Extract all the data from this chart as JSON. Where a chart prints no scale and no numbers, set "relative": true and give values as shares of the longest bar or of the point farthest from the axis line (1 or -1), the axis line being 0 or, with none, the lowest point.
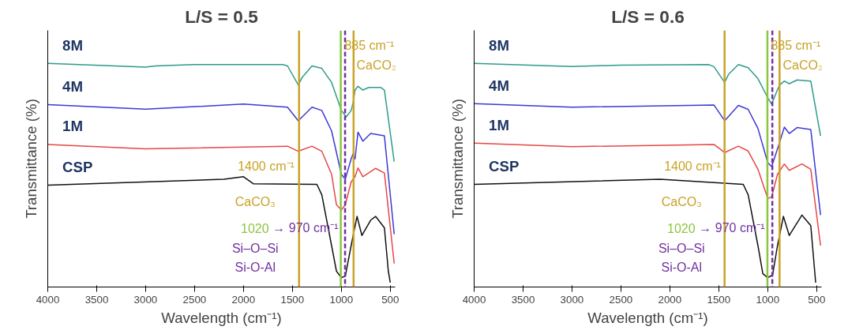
{
  "chart_data": [
    {
      "type": "line",
      "title": "L/S = 0.5",
      "xlabel": "Wavelength (cm⁻¹)",
      "ylabel": "Transmittance (%)",
      "relative": true,
      "tick_labels": "x",
      "grid": false,
      "xlim": [
        4000,
        450
      ],
      "xticks": [
        4000,
        3500,
        3000,
        2500,
        2000,
        1500,
        1000,
        500
      ],
      "series": [
        {
          "name": "8M",
          "color": "#2e9b8a",
          "x": [
            4000,
            3000,
            2900,
            2500,
            1600,
            1550,
            1440,
            1400,
            1300,
            1200,
            1100,
            1000,
            950,
            900,
            880,
            860,
            830,
            780,
            720,
            600,
            560,
            460
          ],
          "values": [
            1.0,
            0.983,
            0.988,
            0.994,
            0.994,
            0.988,
            0.901,
            0.936,
            0.988,
            0.977,
            0.913,
            0.785,
            0.756,
            0.785,
            0.82,
            0.878,
            0.895,
            0.878,
            0.89,
            0.89,
            0.878,
            0.552
          ]
        },
        {
          "name": "4M",
          "color": "#3a3ad6",
          "x": [
            4000,
            3000,
            2000,
            1550,
            1440,
            1300,
            1200,
            1100,
            1000,
            960,
            900,
            880,
            860,
            830,
            780,
            700,
            560,
            460
          ],
          "values": [
            0.812,
            0.791,
            0.814,
            0.8,
            0.738,
            0.8,
            0.785,
            0.692,
            0.494,
            0.471,
            0.564,
            0.587,
            0.564,
            0.686,
            0.645,
            0.68,
            0.669,
            0.221
          ]
        },
        {
          "name": "1M",
          "color": "#e84646",
          "x": [
            4000,
            3000,
            1550,
            1440,
            1300,
            1200,
            1100,
            1050,
            1000,
            960,
            900,
            860,
            830,
            780,
            650,
            560,
            460
          ],
          "values": [
            0.63,
            0.61,
            0.622,
            0.599,
            0.622,
            0.599,
            0.494,
            0.355,
            0.331,
            0.355,
            0.459,
            0.483,
            0.523,
            0.483,
            0.521,
            0.5,
            0.087
          ]
        },
        {
          "name": "CSP",
          "color": "#111111",
          "x": [
            4000,
            2200,
            2000,
            1900,
            1250,
            1200,
            1100,
            1050,
            1000,
            960,
            900,
            840,
            790,
            700,
            650,
            560,
            520,
            500
          ],
          "values": [
            0.444,
            0.471,
            0.483,
            0.451,
            0.448,
            0.401,
            0.169,
            0.052,
            0.023,
            0.029,
            0.169,
            0.302,
            0.215,
            0.285,
            0.302,
            0.25,
            0.052,
            0.0
          ]
        }
      ],
      "ref_lines": [
        {
          "axis": "x",
          "value": 1432,
          "color": "#c9a227",
          "line_style": "solid"
        },
        {
          "axis": "x",
          "value": 1006,
          "color": "#8cc63f",
          "line_style": "solid"
        },
        {
          "axis": "x",
          "value": 962,
          "color": "#7030a0",
          "line_style": "dashed"
        },
        {
          "axis": "x",
          "value": 875,
          "color": "#c9a227",
          "line_style": "solid"
        }
      ],
      "annotations": [
        "1400 cm⁻¹",
        "CaCO₃",
        "885 cm⁻¹",
        "CaCO₃",
        "1020",
        "→ 970 cm⁻¹",
        "Si–O–Si",
        "Si-O-Al"
      ]
    },
    {
      "type": "line",
      "title": "L/S = 0.6",
      "xlabel": "Wavelength (cm⁻¹)",
      "ylabel": "Transmittance (%)",
      "relative": true,
      "tick_labels": "x",
      "grid": false,
      "xlim": [
        4000,
        450
      ],
      "xticks": [
        4000,
        3500,
        3000,
        2500,
        2000,
        1500,
        1000,
        500
      ],
      "series": [
        {
          "name": "8M",
          "color": "#2e9b8a",
          "x": [
            4000,
            3000,
            2500,
            1600,
            1550,
            1440,
            1400,
            1300,
            1200,
            1100,
            1000,
            960,
            900,
            880,
            830,
            780,
            700,
            560,
            460
          ],
          "values": [
            1.0,
            0.985,
            0.992,
            0.994,
            0.985,
            0.913,
            0.95,
            0.994,
            0.98,
            0.93,
            0.843,
            0.814,
            0.88,
            0.9,
            0.919,
            0.907,
            0.924,
            0.919,
            0.669
          ]
        },
        {
          "name": "4M",
          "color": "#3a3ad6",
          "x": [
            4000,
            3000,
            1550,
            1440,
            1300,
            1200,
            1100,
            1000,
            960,
            900,
            830,
            780,
            700,
            560,
            460
          ],
          "values": [
            0.816,
            0.8,
            0.81,
            0.738,
            0.808,
            0.79,
            0.703,
            0.547,
            0.529,
            0.61,
            0.709,
            0.68,
            0.707,
            0.698,
            0.308
          ]
        },
        {
          "name": "1M",
          "color": "#e84646",
          "x": [
            4000,
            3000,
            1550,
            1440,
            1300,
            1200,
            1100,
            1000,
            960,
            900,
            830,
            780,
            650,
            560,
            460
          ],
          "values": [
            0.636,
            0.62,
            0.63,
            0.593,
            0.622,
            0.6,
            0.517,
            0.384,
            0.39,
            0.494,
            0.541,
            0.512,
            0.541,
            0.517,
            0.169
          ]
        },
        {
          "name": "CSP",
          "color": "#111111",
          "x": [
            4000,
            2100,
            1250,
            1200,
            1100,
            1050,
            1000,
            950,
            900,
            840,
            780,
            650,
            560,
            510
          ],
          "values": [
            0.448,
            0.471,
            0.448,
            0.401,
            0.169,
            0.041,
            0.023,
            0.035,
            0.169,
            0.302,
            0.215,
            0.308,
            0.26,
            0.0
          ]
        }
      ],
      "ref_lines": [
        {
          "axis": "x",
          "value": 1441,
          "color": "#c9a227",
          "line_style": "solid"
        },
        {
          "axis": "x",
          "value": 1003,
          "color": "#8cc63f",
          "line_style": "solid"
        },
        {
          "axis": "x",
          "value": 953,
          "color": "#7030a0",
          "line_style": "dashed"
        },
        {
          "axis": "x",
          "value": 879,
          "color": "#c9a227",
          "line_style": "solid"
        }
      ],
      "annotations": [
        "1400 cm⁻¹",
        "CaCO₃",
        "885 cm⁻¹",
        "CaCO₃",
        "1020",
        "→ 970 cm⁻¹",
        "Si–O–Si",
        "Si-O-Al"
      ]
    }
  ]
}
